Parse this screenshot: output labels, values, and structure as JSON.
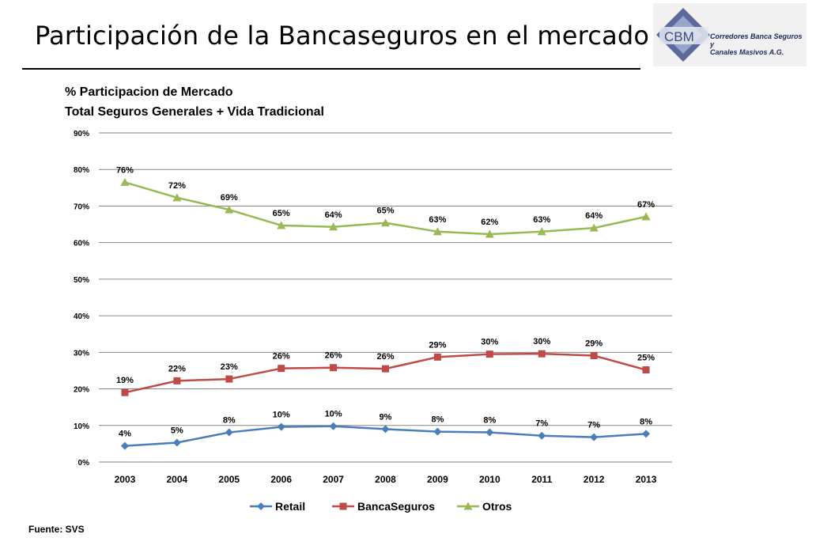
{
  "slide": {
    "title": "Participación de la Bancaseguros en el mercado",
    "source": "Fuente: SVS"
  },
  "logo": {
    "abbr": "CBM",
    "line1": "Corredores Banca Seguros y",
    "line2": "Canales Masivos A.G.",
    "colors": {
      "diamond_outer": "#5b6b9e",
      "diamond_inner": "#9aa6c9",
      "text": "#1f2a5a"
    }
  },
  "chart_data": {
    "type": "line",
    "title": "% Participacion de Mercado",
    "subtitle": "Total Seguros Generales + Vida Tradicional",
    "xlabel": "",
    "ylabel": "",
    "x": [
      "2003",
      "2004",
      "2005",
      "2006",
      "2007",
      "2008",
      "2009",
      "2010",
      "2011",
      "2012",
      "2013"
    ],
    "ylim": [
      0,
      90
    ],
    "yticks": [
      "0%",
      "10%",
      "20%",
      "30%",
      "40%",
      "50%",
      "60%",
      "70%",
      "80%",
      "90%"
    ],
    "grid": true,
    "legend_position": "bottom",
    "series": [
      {
        "name": "Retail",
        "marker": "diamond",
        "color": "#4a7ebb",
        "values": [
          4.4,
          5.3,
          8.1,
          9.6,
          9.8,
          9.0,
          8.3,
          8.1,
          7.2,
          6.8,
          7.7
        ],
        "labels": [
          "4%",
          "5%",
          "8%",
          "10%",
          "10%",
          "9%",
          "8%",
          "8%",
          "7%",
          "7%",
          "8%"
        ]
      },
      {
        "name": "BancaSeguros",
        "marker": "square",
        "color": "#be4b48",
        "values": [
          19.0,
          22.2,
          22.7,
          25.6,
          25.8,
          25.5,
          28.7,
          29.5,
          29.6,
          29.1,
          25.2
        ],
        "labels": [
          "19%",
          "22%",
          "23%",
          "26%",
          "26%",
          "26%",
          "29%",
          "30%",
          "30%",
          "29%",
          "25%"
        ]
      },
      {
        "name": "Otros",
        "marker": "triangle",
        "color": "#98b954",
        "values": [
          76.5,
          72.3,
          69.0,
          64.7,
          64.3,
          65.4,
          63.0,
          62.3,
          63.0,
          64.0,
          67.1
        ],
        "labels": [
          "76%",
          "72%",
          "69%",
          "65%",
          "64%",
          "65%",
          "63%",
          "62%",
          "63%",
          "64%",
          "67%"
        ]
      }
    ]
  }
}
